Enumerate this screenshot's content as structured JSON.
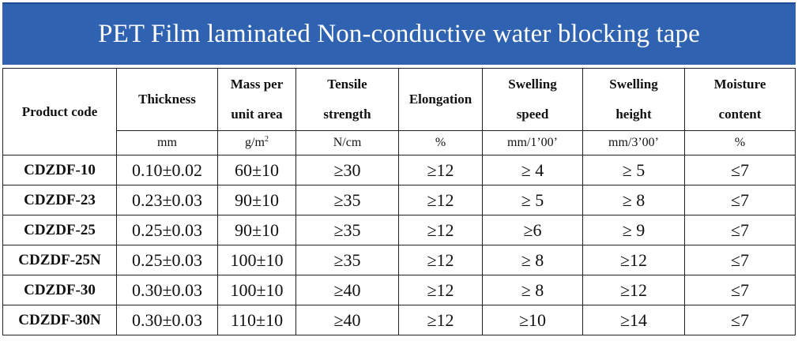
{
  "title": "PET Film laminated Non-conductive water blocking tape",
  "columns": [
    {
      "line1": "Product code",
      "line2": ""
    },
    {
      "line1": "Thickness",
      "line2": ""
    },
    {
      "line1": "Mass per",
      "line2": "unit area"
    },
    {
      "line1": "Tensile",
      "line2": "strength"
    },
    {
      "line1": "Elongation",
      "line2": ""
    },
    {
      "line1": "Swelling",
      "line2": "speed"
    },
    {
      "line1": "Swelling",
      "line2": "height"
    },
    {
      "line1": "Moisture",
      "line2": "content"
    }
  ],
  "units": {
    "thickness": "mm",
    "mass_base": "g/m",
    "mass_exp": "2",
    "tensile": "N/cm",
    "elongation": "%",
    "swelling_speed": "mm/1’00’",
    "swelling_height": "mm/3’00’",
    "moisture": "%"
  },
  "rows": [
    {
      "code": "CDZDF-10",
      "thickness": "0.10±0.02",
      "mass": "60±10",
      "tensile": "≥30",
      "elongation": "≥12",
      "speed": "≥ 4",
      "height": "≥ 5",
      "moisture": "≤7"
    },
    {
      "code": "CDZDF-23",
      "thickness": "0.23±0.03",
      "mass": "90±10",
      "tensile": "≥35",
      "elongation": "≥12",
      "speed": "≥ 5",
      "height": "≥ 8",
      "moisture": "≤7"
    },
    {
      "code": "CDZDF-25",
      "thickness": "0.25±0.03",
      "mass": "90±10",
      "tensile": "≥35",
      "elongation": "≥12",
      "speed": "≥6",
      "height": "≥ 9",
      "moisture": "≤7"
    },
    {
      "code": "CDZDF-25N",
      "thickness": "0.25±0.03",
      "mass": "100±10",
      "tensile": "≥35",
      "elongation": "≥12",
      "speed": "≥ 8",
      "height": "≥12",
      "moisture": "≤7"
    },
    {
      "code": "CDZDF-30",
      "thickness": "0.30±0.03",
      "mass": "100±10",
      "tensile": "≥40",
      "elongation": "≥12",
      "speed": "≥ 8",
      "height": "≥12",
      "moisture": "≤7"
    },
    {
      "code": "CDZDF-30N",
      "thickness": "0.30±0.03",
      "mass": "110±10",
      "tensile": "≥40",
      "elongation": "≥12",
      "speed": "≥10",
      "height": "≥14",
      "moisture": "≤7"
    }
  ],
  "colors": {
    "header_bg": "#2f63b1",
    "header_text": "#ffffff"
  }
}
